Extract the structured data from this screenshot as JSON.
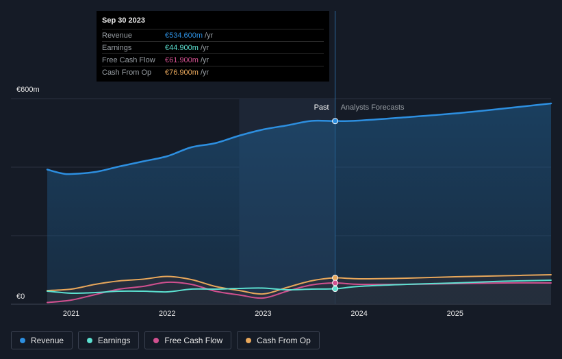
{
  "tooltip": {
    "date": "Sep 30 2023",
    "rows": [
      {
        "label": "Revenue",
        "value": "€534.600m",
        "unit": "/yr",
        "color": "#2d8fe0"
      },
      {
        "label": "Earnings",
        "value": "€44.900m",
        "unit": "/yr",
        "color": "#5ce0d0"
      },
      {
        "label": "Free Cash Flow",
        "value": "€61.900m",
        "unit": "/yr",
        "color": "#d1508f"
      },
      {
        "label": "Cash From Op",
        "value": "€76.900m",
        "unit": "/yr",
        "color": "#e8a75b"
      }
    ]
  },
  "labels": {
    "past": "Past",
    "forecast": "Analysts Forecasts"
  },
  "legend": [
    {
      "label": "Revenue",
      "color": "#2d8fe0"
    },
    {
      "label": "Earnings",
      "color": "#5ce0d0"
    },
    {
      "label": "Free Cash Flow",
      "color": "#d1508f"
    },
    {
      "label": "Cash From Op",
      "color": "#e8a75b"
    }
  ],
  "chart_data": {
    "type": "line",
    "y_ticks": [
      {
        "value": 0,
        "label": "€0"
      },
      {
        "value": 600,
        "label": "€600m"
      }
    ],
    "ylim": [
      0,
      600
    ],
    "x_ticks": [
      {
        "value": 2021.0,
        "label": "2021"
      },
      {
        "value": 2022.0,
        "label": "2022"
      },
      {
        "value": 2023.0,
        "label": "2023"
      },
      {
        "value": 2024.0,
        "label": "2024"
      },
      {
        "value": 2025.0,
        "label": "2025"
      }
    ],
    "xlim": [
      2020.6,
      2026.0
    ],
    "past_end": 2023.75,
    "past_shade_start": 2022.75,
    "series": [
      {
        "name": "Revenue",
        "color": "#2d8fe0",
        "points": [
          [
            2020.75,
            393
          ],
          [
            2020.9,
            382
          ],
          [
            2021.0,
            380
          ],
          [
            2021.25,
            386
          ],
          [
            2021.5,
            402
          ],
          [
            2021.75,
            417
          ],
          [
            2022.0,
            432
          ],
          [
            2022.25,
            458
          ],
          [
            2022.5,
            470
          ],
          [
            2022.75,
            492
          ],
          [
            2023.0,
            510
          ],
          [
            2023.25,
            522
          ],
          [
            2023.5,
            535
          ],
          [
            2023.75,
            534.6
          ],
          [
            2024.0,
            536
          ],
          [
            2024.5,
            546
          ],
          [
            2025.0,
            557
          ],
          [
            2025.5,
            571
          ],
          [
            2026.0,
            586
          ]
        ]
      },
      {
        "name": "Earnings",
        "color": "#5ce0d0",
        "points": [
          [
            2020.75,
            38
          ],
          [
            2021.0,
            32
          ],
          [
            2021.25,
            34
          ],
          [
            2021.5,
            38
          ],
          [
            2021.75,
            38
          ],
          [
            2022.0,
            36
          ],
          [
            2022.25,
            44
          ],
          [
            2022.5,
            44
          ],
          [
            2022.75,
            46
          ],
          [
            2023.0,
            47
          ],
          [
            2023.25,
            42
          ],
          [
            2023.5,
            44
          ],
          [
            2023.75,
            44.9
          ],
          [
            2024.0,
            52
          ],
          [
            2024.5,
            58
          ],
          [
            2025.0,
            62
          ],
          [
            2025.5,
            67
          ],
          [
            2026.0,
            70
          ]
        ]
      },
      {
        "name": "Free Cash Flow",
        "color": "#d1508f",
        "points": [
          [
            2020.75,
            5
          ],
          [
            2021.0,
            12
          ],
          [
            2021.25,
            28
          ],
          [
            2021.5,
            44
          ],
          [
            2021.75,
            52
          ],
          [
            2022.0,
            64
          ],
          [
            2022.25,
            58
          ],
          [
            2022.5,
            38
          ],
          [
            2022.75,
            27
          ],
          [
            2023.0,
            18
          ],
          [
            2023.25,
            38
          ],
          [
            2023.5,
            56
          ],
          [
            2023.75,
            61.9
          ],
          [
            2024.0,
            58
          ],
          [
            2024.5,
            58
          ],
          [
            2025.0,
            60
          ],
          [
            2025.5,
            62
          ],
          [
            2026.0,
            62
          ]
        ]
      },
      {
        "name": "Cash From Op",
        "color": "#e8a75b",
        "points": [
          [
            2020.75,
            40
          ],
          [
            2021.0,
            44
          ],
          [
            2021.25,
            58
          ],
          [
            2021.5,
            68
          ],
          [
            2021.75,
            73
          ],
          [
            2022.0,
            81
          ],
          [
            2022.25,
            72
          ],
          [
            2022.5,
            52
          ],
          [
            2022.75,
            40
          ],
          [
            2023.0,
            30
          ],
          [
            2023.25,
            49
          ],
          [
            2023.5,
            68
          ],
          [
            2023.75,
            76.9
          ],
          [
            2024.0,
            74
          ],
          [
            2024.5,
            76
          ],
          [
            2025.0,
            80
          ],
          [
            2025.5,
            83
          ],
          [
            2026.0,
            86
          ]
        ]
      }
    ]
  }
}
